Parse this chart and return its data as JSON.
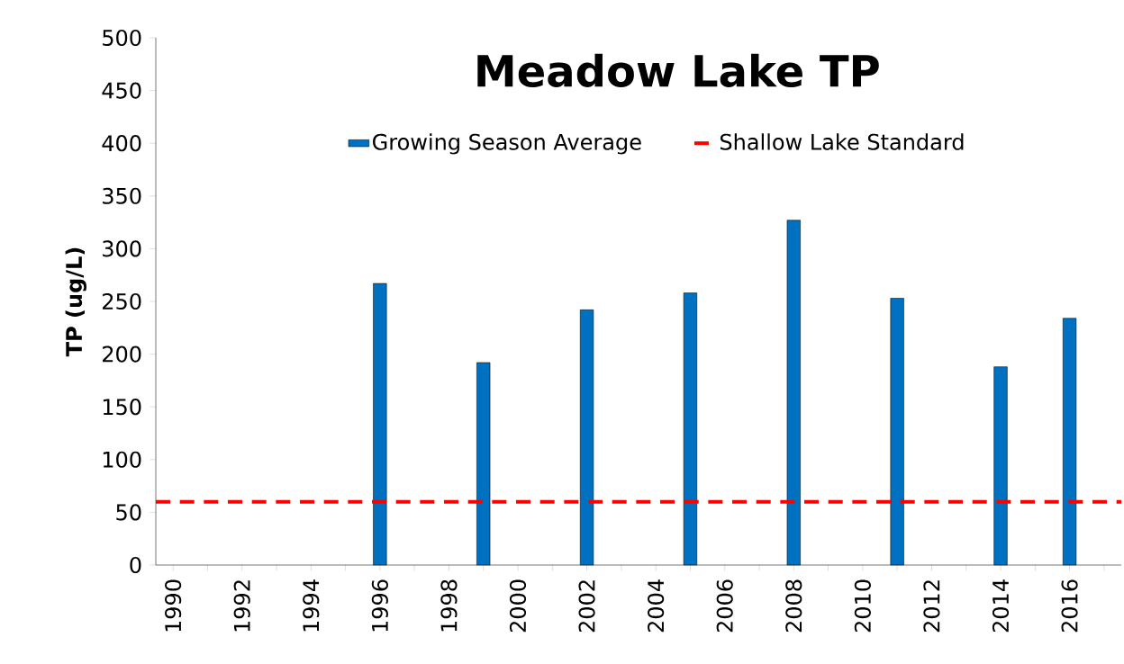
{
  "chart_data": {
    "type": "bar",
    "title": "Meadow Lake TP",
    "ylabel": "TP (ug/L)",
    "categories": [
      "1990",
      null,
      "1992",
      null,
      "1994",
      null,
      "1996",
      null,
      "1998",
      null,
      "2000",
      null,
      "2002",
      null,
      "2004",
      null,
      "2006",
      null,
      "2008",
      null,
      "2010",
      null,
      "2012",
      null,
      "2014",
      null,
      "2016",
      null
    ],
    "series": [
      {
        "name": "Growing Season Average",
        "color": "#0070c0",
        "values": [
          null,
          null,
          null,
          null,
          null,
          null,
          267,
          null,
          null,
          192,
          null,
          null,
          242,
          null,
          null,
          258,
          null,
          null,
          327,
          null,
          null,
          253,
          null,
          null,
          188,
          null,
          234,
          null
        ]
      }
    ],
    "ref_lines": [
      {
        "axis": "y",
        "value": 60,
        "label": "Shallow Lake Standard",
        "color": "#ff0000",
        "line_style": "dashed"
      }
    ],
    "ylim": [
      0,
      500
    ],
    "yticks": [
      0,
      50,
      100,
      150,
      200,
      250,
      300,
      350,
      400,
      450,
      500
    ],
    "grid": false,
    "legend": "top"
  }
}
